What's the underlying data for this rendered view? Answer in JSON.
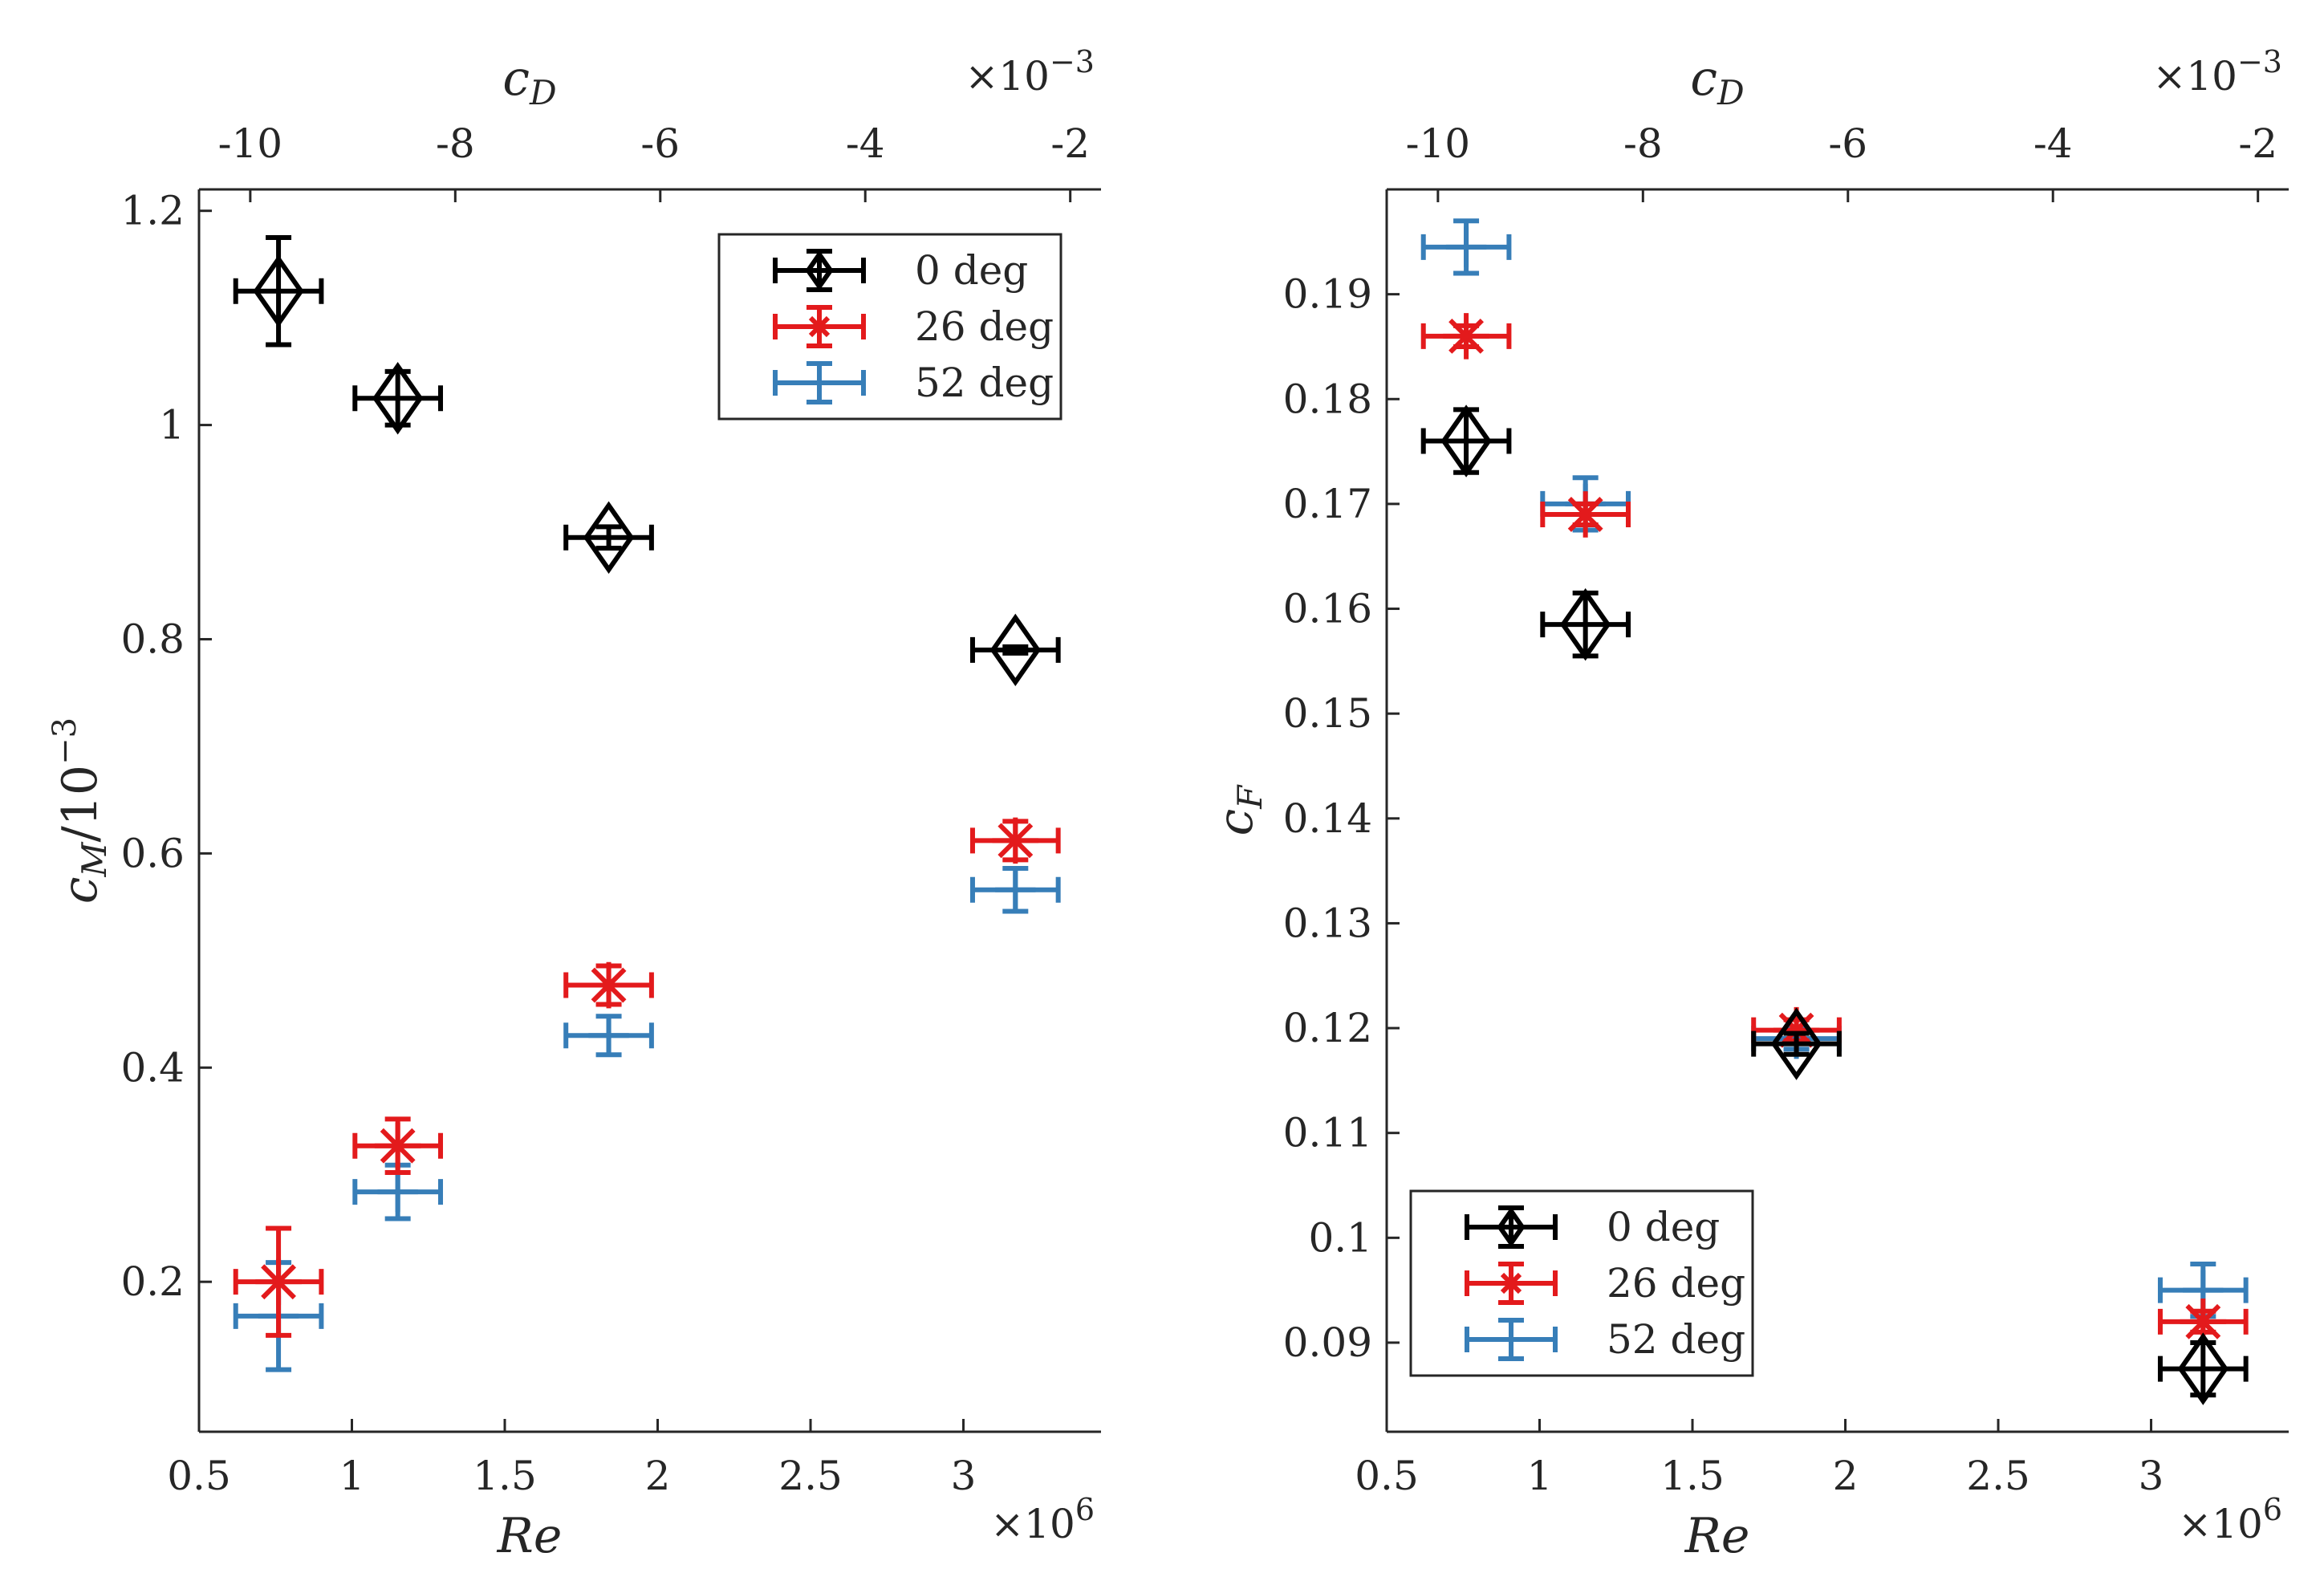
{
  "colors": {
    "0 deg": "#000000",
    "26 deg": "#e31a1c",
    "52 deg": "#377eb8"
  },
  "chart_data": [
    {
      "type": "scatter",
      "error_bars": true,
      "xlabel": "Re",
      "x_multiplier": "×10^6",
      "xlim": [
        0.5,
        3.45
      ],
      "xticks": [
        "0.5",
        "1",
        "1.5",
        "2",
        "2.5",
        "3"
      ],
      "x2label": "c_D",
      "x2_multiplier": "×10^-3",
      "x2lim": [
        -10.5,
        -1.7
      ],
      "x2ticks": [
        "-10",
        "-8",
        "-6",
        "-4",
        "-2"
      ],
      "ylabel": "c_M / 10^-3",
      "ylim": [
        0.06,
        1.22
      ],
      "yticks": [
        "0.2",
        "0.4",
        "0.6",
        "0.8",
        "1",
        "1.2"
      ],
      "legend": {
        "position": "top-right",
        "entries": [
          "0 deg",
          "26 deg",
          "52 deg"
        ]
      },
      "series": [
        {
          "name": "0 deg",
          "marker": "diamond",
          "points": [
            {
              "x": 0.76,
              "y": 1.125,
              "xerr": 0.14,
              "yerr": 0.05
            },
            {
              "x": 1.15,
              "y": 1.025,
              "xerr": 0.14,
              "yerr": 0.025
            },
            {
              "x": 1.84,
              "y": 0.895,
              "xerr": 0.14,
              "yerr": 0.01
            },
            {
              "x": 3.17,
              "y": 0.79,
              "xerr": 0.14,
              "yerr": 0.003
            }
          ]
        },
        {
          "name": "26 deg",
          "marker": "asterisk",
          "points": [
            {
              "x": 0.76,
              "y": 0.2,
              "xerr": 0.14,
              "yerr": 0.05
            },
            {
              "x": 1.15,
              "y": 0.327,
              "xerr": 0.14,
              "yerr": 0.025
            },
            {
              "x": 1.84,
              "y": 0.477,
              "xerr": 0.14,
              "yerr": 0.018
            },
            {
              "x": 3.17,
              "y": 0.612,
              "xerr": 0.14,
              "yerr": 0.018
            }
          ]
        },
        {
          "name": "52 deg",
          "marker": "plus",
          "points": [
            {
              "x": 0.76,
              "y": 0.168,
              "xerr": 0.14,
              "yerr": 0.05
            },
            {
              "x": 1.15,
              "y": 0.284,
              "xerr": 0.14,
              "yerr": 0.025
            },
            {
              "x": 1.84,
              "y": 0.43,
              "xerr": 0.14,
              "yerr": 0.018
            },
            {
              "x": 3.17,
              "y": 0.566,
              "xerr": 0.14,
              "yerr": 0.02
            }
          ]
        }
      ]
    },
    {
      "type": "scatter",
      "error_bars": true,
      "xlabel": "Re",
      "x_multiplier": "×10^6",
      "xlim": [
        0.5,
        3.45
      ],
      "xticks": [
        "0.5",
        "1",
        "1.5",
        "2",
        "2.5",
        "3"
      ],
      "x2label": "c_D",
      "x2_multiplier": "×10^-3",
      "x2lim": [
        -10.5,
        -1.7
      ],
      "x2ticks": [
        "-10",
        "-8",
        "-6",
        "-4",
        "-2"
      ],
      "ylabel": "c_F",
      "ylim": [
        0.0815,
        0.2
      ],
      "yticks": [
        "0.09",
        "0.1",
        "0.11",
        "0.12",
        "0.13",
        "0.14",
        "0.15",
        "0.16",
        "0.17",
        "0.18",
        "0.19"
      ],
      "legend": {
        "position": "bottom-left",
        "entries": [
          "0 deg",
          "26 deg",
          "52 deg"
        ]
      },
      "series": [
        {
          "name": "0 deg",
          "marker": "diamond",
          "points": [
            {
              "x": 0.76,
              "y": 0.176,
              "xerr": 0.14,
              "yerr": 0.003
            },
            {
              "x": 1.15,
              "y": 0.1585,
              "xerr": 0.14,
              "yerr": 0.003
            },
            {
              "x": 1.84,
              "y": 0.1185,
              "xerr": 0.14,
              "yerr": 0.001
            },
            {
              "x": 3.17,
              "y": 0.0875,
              "xerr": 0.14,
              "yerr": 0.0025
            }
          ]
        },
        {
          "name": "26 deg",
          "marker": "asterisk",
          "points": [
            {
              "x": 0.76,
              "y": 0.186,
              "xerr": 0.14,
              "yerr": 0.001
            },
            {
              "x": 1.15,
              "y": 0.169,
              "xerr": 0.14,
              "yerr": 0.001
            },
            {
              "x": 1.84,
              "y": 0.1198,
              "xerr": 0.14,
              "yerr": 0.001
            },
            {
              "x": 3.17,
              "y": 0.092,
              "xerr": 0.14,
              "yerr": 0.001
            }
          ]
        },
        {
          "name": "52 deg",
          "marker": "plus",
          "points": [
            {
              "x": 0.76,
              "y": 0.1945,
              "xerr": 0.14,
              "yerr": 0.0025
            },
            {
              "x": 1.15,
              "y": 0.17,
              "xerr": 0.14,
              "yerr": 0.0025
            },
            {
              "x": 1.84,
              "y": 0.119,
              "xerr": 0.14,
              "yerr": 0.001
            },
            {
              "x": 3.17,
              "y": 0.095,
              "xerr": 0.14,
              "yerr": 0.0025
            }
          ]
        }
      ]
    }
  ]
}
